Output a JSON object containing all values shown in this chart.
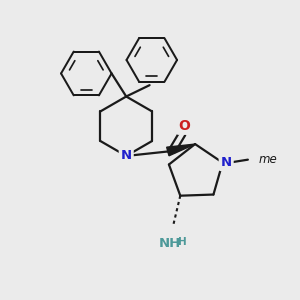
{
  "bg_color": "#ebebeb",
  "bond_color": "#1a1a1a",
  "N_color": "#2020cc",
  "O_color": "#cc2020",
  "NH2_color": "#4d9999",
  "figsize": [
    3.0,
    3.0
  ],
  "dpi": 100,
  "xlim": [
    0,
    10
  ],
  "ylim": [
    0,
    10
  ]
}
